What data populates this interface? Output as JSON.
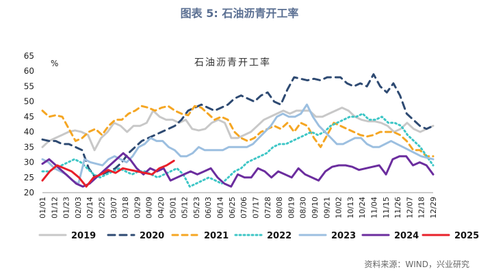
{
  "figure_title": "图表 5:  石油沥青开工率",
  "source": "资料来源：WIND，兴业研究",
  "chart_data": {
    "type": "line",
    "title": "石油沥青开工率",
    "ylabel": "%",
    "xlabel": "",
    "ylim": [
      20,
      65
    ],
    "yticks": [
      20,
      25,
      30,
      35,
      40,
      45,
      50,
      55,
      60,
      65
    ],
    "grid": false,
    "legend_position": "bottom",
    "x_tick_labels": [
      "01/01",
      "01/12",
      "01/23",
      "02/03",
      "02/14",
      "02/25",
      "03/07",
      "03/18",
      "03/29",
      "04/09",
      "04/20",
      "05/01",
      "05/12",
      "05/23",
      "06/03",
      "06/14",
      "06/25",
      "07/06",
      "07/17",
      "07/28",
      "08/08",
      "08/19",
      "08/30",
      "09/10",
      "09/21",
      "10/02",
      "10/13",
      "10/24",
      "11/04",
      "11/15",
      "11/26",
      "12/07",
      "12/18",
      "12/29"
    ],
    "series": [
      {
        "name": "2019",
        "color": "#c8c8c8",
        "dash": "solid",
        "width": 3,
        "values": [
          35,
          37,
          38,
          39,
          40,
          40.5,
          40,
          39,
          34,
          38,
          40,
          43,
          42,
          40,
          42,
          42,
          43,
          47,
          45,
          44,
          44,
          43,
          44,
          41,
          40.5,
          41,
          43,
          44,
          43,
          38,
          38,
          39,
          40,
          42,
          44,
          45,
          46,
          47,
          46,
          47,
          47,
          47,
          45,
          45,
          46,
          47,
          48,
          47,
          45,
          44,
          43.5,
          43.5,
          43,
          42,
          40,
          41,
          43,
          41,
          40,
          41,
          42
        ]
      },
      {
        "name": "2020",
        "color": "#2e4a72",
        "dash": "10,7",
        "width": 3,
        "values": [
          37.5,
          37,
          37,
          36,
          36,
          35,
          34,
          28,
          25,
          26,
          27,
          28,
          30,
          33,
          35,
          37,
          38,
          39,
          40,
          41,
          42,
          44,
          47,
          48,
          49,
          48,
          47,
          48,
          49,
          51,
          52,
          51,
          50,
          52,
          53,
          50,
          49,
          54,
          58,
          57.5,
          57,
          57.5,
          57,
          58,
          58,
          58,
          56,
          55,
          56,
          55,
          59,
          55,
          53,
          56,
          52,
          46,
          44,
          42,
          41,
          42
        ]
      },
      {
        "name": "2021",
        "color": "#f5a623",
        "dash": "8,6",
        "width": 3,
        "values": [
          47,
          45,
          45.5,
          45,
          41,
          37,
          38,
          40,
          41,
          39,
          42,
          44,
          44,
          46,
          47,
          48.5,
          48,
          47,
          48,
          48.5,
          47,
          46,
          45.5,
          48.5,
          48,
          46,
          44,
          45,
          44,
          40,
          38,
          37,
          38,
          40,
          41,
          42,
          41,
          43,
          40,
          43,
          42,
          38,
          35,
          39,
          43,
          42,
          41,
          40,
          39,
          38.5,
          39,
          40,
          40,
          40,
          39,
          37,
          34,
          34,
          32,
          32
        ]
      },
      {
        "name": "2022",
        "color": "#3ec6c6",
        "dash": "2,4",
        "width": 3,
        "values": [
          27,
          27,
          28,
          29,
          30,
          31,
          30,
          28,
          26,
          25,
          26,
          27,
          28,
          27,
          26,
          27,
          27,
          26,
          25,
          26,
          27,
          28,
          26,
          22,
          23,
          24,
          25,
          24,
          23,
          25,
          27,
          28,
          30,
          31,
          32,
          33,
          35,
          36,
          36,
          37,
          38,
          39,
          40,
          39,
          40,
          42,
          43,
          44,
          45,
          45,
          46,
          44,
          44,
          45,
          43,
          43,
          42,
          39,
          37,
          35,
          32,
          29
        ]
      },
      {
        "name": "2023",
        "color": "#9cbfe0",
        "dash": "solid",
        "width": 3,
        "values": [
          31,
          30,
          28,
          27,
          26,
          24,
          23,
          31,
          30,
          29.5,
          29,
          31,
          32,
          31,
          30,
          32,
          35,
          36,
          38,
          37,
          37,
          35,
          34,
          32,
          32,
          33,
          35,
          34,
          34,
          34,
          34,
          35,
          35,
          35,
          35,
          36,
          38,
          40,
          42,
          45,
          46,
          45,
          45,
          46,
          49,
          45,
          42,
          40,
          38,
          36,
          36,
          37,
          38,
          38,
          36,
          35,
          35,
          36,
          37,
          36,
          35,
          34,
          33,
          32,
          31.5,
          31
        ]
      },
      {
        "name": "2024",
        "color": "#6b2d9e",
        "dash": "solid",
        "width": 3,
        "values": [
          29.5,
          31,
          29,
          27,
          25,
          23,
          22,
          23,
          25,
          27,
          29,
          31,
          33,
          31,
          28,
          26,
          28,
          27,
          28,
          24,
          25,
          26,
          27,
          26,
          27,
          28,
          25,
          23,
          22,
          26,
          25,
          25,
          28,
          27,
          25,
          27,
          26,
          25,
          28,
          26,
          25,
          24,
          27,
          28.5,
          29,
          29,
          28.5,
          27.5,
          28,
          28.5,
          29,
          26,
          31,
          32,
          32,
          29,
          30,
          29,
          26
        ]
      },
      {
        "name": "2025",
        "color": "#e8202a",
        "dash": "solid",
        "width": 3,
        "values": [
          24,
          27,
          29,
          28,
          27,
          25,
          22,
          25,
          26,
          27.5,
          26.5,
          28,
          27.5,
          27,
          26.5,
          26,
          28,
          29,
          30.5
        ]
      }
    ]
  }
}
